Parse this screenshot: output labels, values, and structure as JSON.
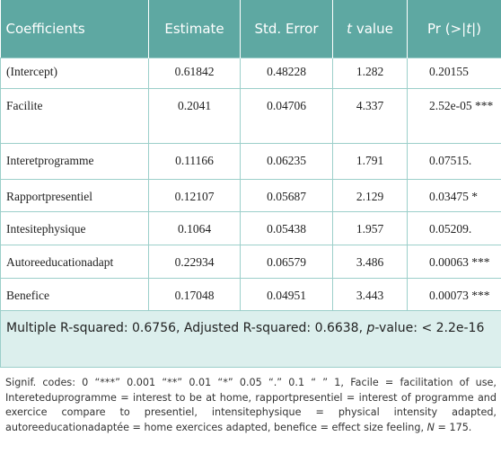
{
  "table": {
    "header": [
      "Coefficients",
      "Estimate",
      "Std. Error",
      {
        "italic": "t",
        "rest": " value"
      },
      {
        "prefix": "Pr (>|",
        "italic": "t",
        "suffix": "|)"
      }
    ],
    "rows": [
      [
        " (Intercept)",
        "0.61842",
        "0.48228",
        "1.282",
        "0.20155"
      ],
      [
        "Facilite",
        "0.2041",
        "0.04706",
        "4.337",
        "2.52e-05 ***"
      ],
      [
        "Interetprogramme",
        "0.11166",
        "0.06235",
        "1.791",
        "0.07515."
      ],
      [
        "Rapportpresentiel",
        "0.12107",
        "0.05687",
        "2.129",
        "0.03475 *"
      ],
      [
        "Intesitephysique",
        "0.1064",
        "0.05438",
        "1.957",
        "0.05209."
      ],
      [
        "Autoreeducationadapt",
        "0.22934",
        "0.06579",
        "3.486",
        "0.00063 ***"
      ],
      [
        "Benefice",
        "0.17048",
        "0.04951",
        "3.443",
        "0.00073 ***"
      ]
    ],
    "row_heights": null,
    "summary": {
      "prefix": "Multiple R-squared: 0.6756, Adjusted R-squared: 0.6638, ",
      "italic": "p",
      "suffix": "-value: < 2.2e-16"
    }
  },
  "footnote": {
    "text": "Signif. codes: 0 “***” 0.001 “**” 0.01 “*” 0.05 “.” 0.1 “ ” 1, Facile = facilitation of use, Intereteduprogramme = interest to be at home, rapportpresentiel = interest of programme and exercice compare to presentiel, intensitephysique = physical intensity adapted, autoreeducationadaptée = home exercices adapted, benefice = effect size feeling, ",
    "italic": "N",
    "suffix": " = 175."
  }
}
